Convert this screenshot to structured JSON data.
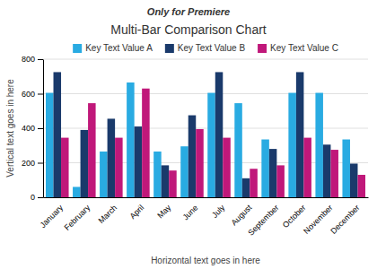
{
  "chart_data": {
    "type": "bar",
    "title": "Multi-Bar Comparison Chart",
    "annotations": [
      "Only for Premiere"
    ],
    "x_label": "Horizontal text goes in here",
    "y_label": "Vertical text goes in here",
    "categories": [
      "January",
      "February",
      "March",
      "April",
      "May",
      "June",
      "July",
      "August",
      "September",
      "October",
      "November",
      "December"
    ],
    "series": [
      {
        "name": "Key Text Value A",
        "color": "#29abe2",
        "values": [
          605,
          60,
          265,
          665,
          265,
          295,
          605,
          545,
          335,
          605,
          605,
          335
        ]
      },
      {
        "name": "Key Text Value B",
        "color": "#1a3a6b",
        "values": [
          725,
          390,
          455,
          410,
          185,
          475,
          725,
          110,
          280,
          725,
          305,
          195
        ]
      },
      {
        "name": "Key Text Value C",
        "color": "#c0187a",
        "values": [
          345,
          545,
          345,
          630,
          155,
          395,
          345,
          165,
          185,
          345,
          275,
          130
        ]
      }
    ],
    "ylim": [
      0,
      800
    ],
    "yticks": [
      0,
      200,
      400,
      600,
      800
    ],
    "grid": true,
    "legend": "top"
  }
}
